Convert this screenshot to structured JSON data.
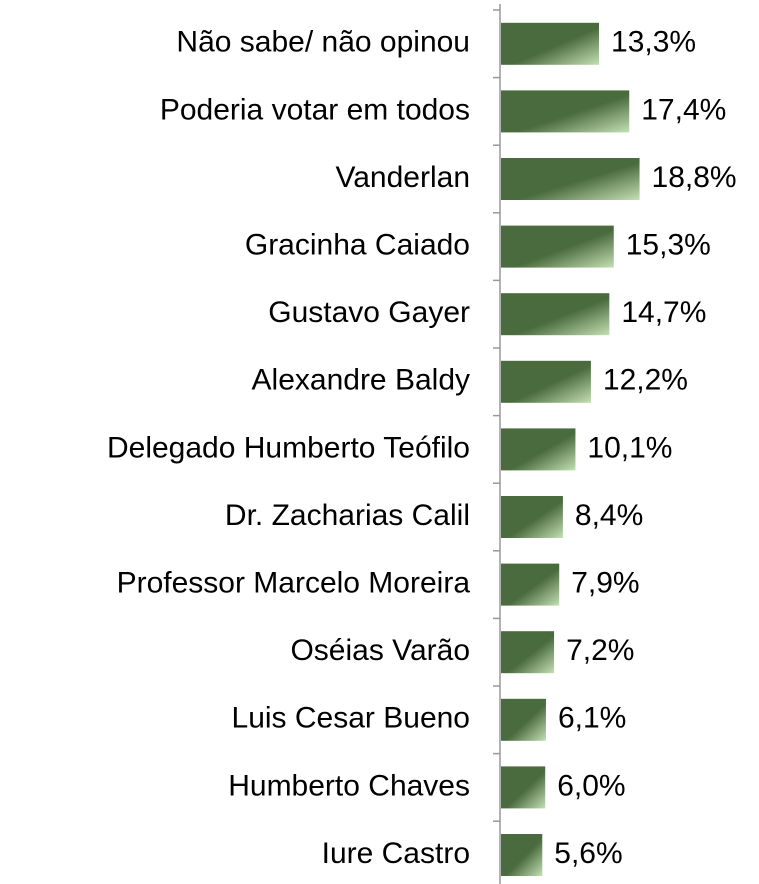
{
  "chart_data": {
    "type": "bar",
    "orientation": "horizontal",
    "categories": [
      "Não sabe/ não opinou",
      "Poderia votar em todos",
      "Vanderlan",
      "Gracinha Caiado",
      "Gustavo Gayer",
      "Alexandre Baldy",
      "Delegado Humberto Teófilo",
      "Dr. Zacharias Calil",
      "Professor Marcelo Moreira",
      "Oséias Varão",
      "Luis Cesar Bueno",
      "Humberto Chaves",
      "Iure Castro"
    ],
    "values": [
      13.3,
      17.4,
      18.8,
      15.3,
      14.7,
      12.2,
      10.1,
      8.4,
      7.9,
      7.2,
      6.1,
      6.0,
      5.6
    ],
    "value_labels": [
      "13,3%",
      "17,4%",
      "18,8%",
      "15,3%",
      "14,7%",
      "12,2%",
      "10,1%",
      "8,4%",
      "7,9%",
      "7,2%",
      "6,1%",
      "6,0%",
      "5,6%"
    ],
    "color": "#4a6b3e"
  }
}
